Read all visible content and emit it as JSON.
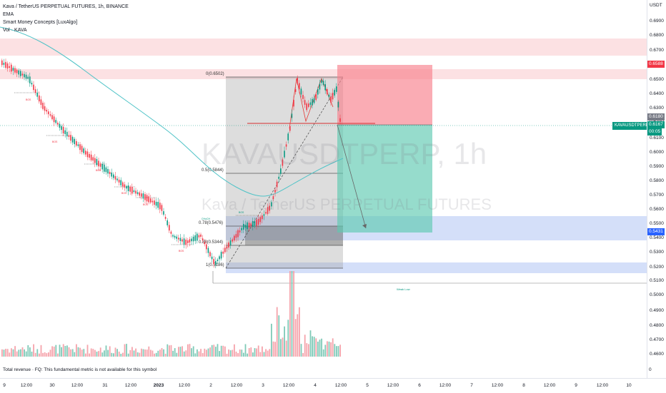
{
  "legend": {
    "symbol": "Kava / TetherUS PERPETUAL FUTURES, 1h, BINANCE",
    "ema": "EMA",
    "smc": "Smart Money Concepts [LuxAlgo]",
    "vol": "Vol · KAVA"
  },
  "watermark": {
    "ticker": "KAVAUSDTPERP, 1h",
    "name": "Kava / TetherUS PERPETUAL FUTURES"
  },
  "price_axis": {
    "currency": "USDT",
    "ticks": [
      "0.6900",
      "0.6800",
      "0.6700",
      "0.6600",
      "0.6500",
      "0.6400",
      "0.6300",
      "0.6200",
      "0.6100",
      "0.6000",
      "0.5900",
      "0.5800",
      "0.5700",
      "0.5600",
      "0.5500",
      "0.5400",
      "0.5300",
      "0.5200",
      "0.5100",
      "0.5000",
      "0.4900",
      "0.4800",
      "0.4700",
      "0.4600"
    ],
    "tags": {
      "stop": "0.6588",
      "prev": "0.6180",
      "last": "0.6167",
      "countdown": "00:05",
      "target": "0.5431"
    },
    "symbol_tag": "KAVAUSDTPERP",
    "zero": "0"
  },
  "time_axis": {
    "labels": [
      "9",
      "12:00",
      "30",
      "12:00",
      "31",
      "12:00",
      "2023",
      "12:00",
      "2",
      "12:00",
      "3",
      "12:00",
      "4",
      "12:00",
      "5",
      "12:00",
      "6",
      "12:00",
      "7",
      "12:00",
      "8",
      "12:00",
      "9",
      "12:00",
      "10"
    ]
  },
  "fib": {
    "l0": "0(0.6502)",
    "l05": "0.5(0.5844)",
    "l078": "0.78(0.5476)",
    "l088": "0.88(0.5344)",
    "l1": "1(0.5186)"
  },
  "labels": {
    "bos": "BOS",
    "choch": "CHoCH",
    "weak_low": "Weak Low"
  },
  "footnote": "Total revenue · FQ: This fundamental metric is not available for this symbol",
  "colors": {
    "up": "#089981",
    "down": "#f23645",
    "ema": "#4fc3c7",
    "zone_red": "#f7c5c9",
    "zone_blue": "#bcd0f5"
  }
}
